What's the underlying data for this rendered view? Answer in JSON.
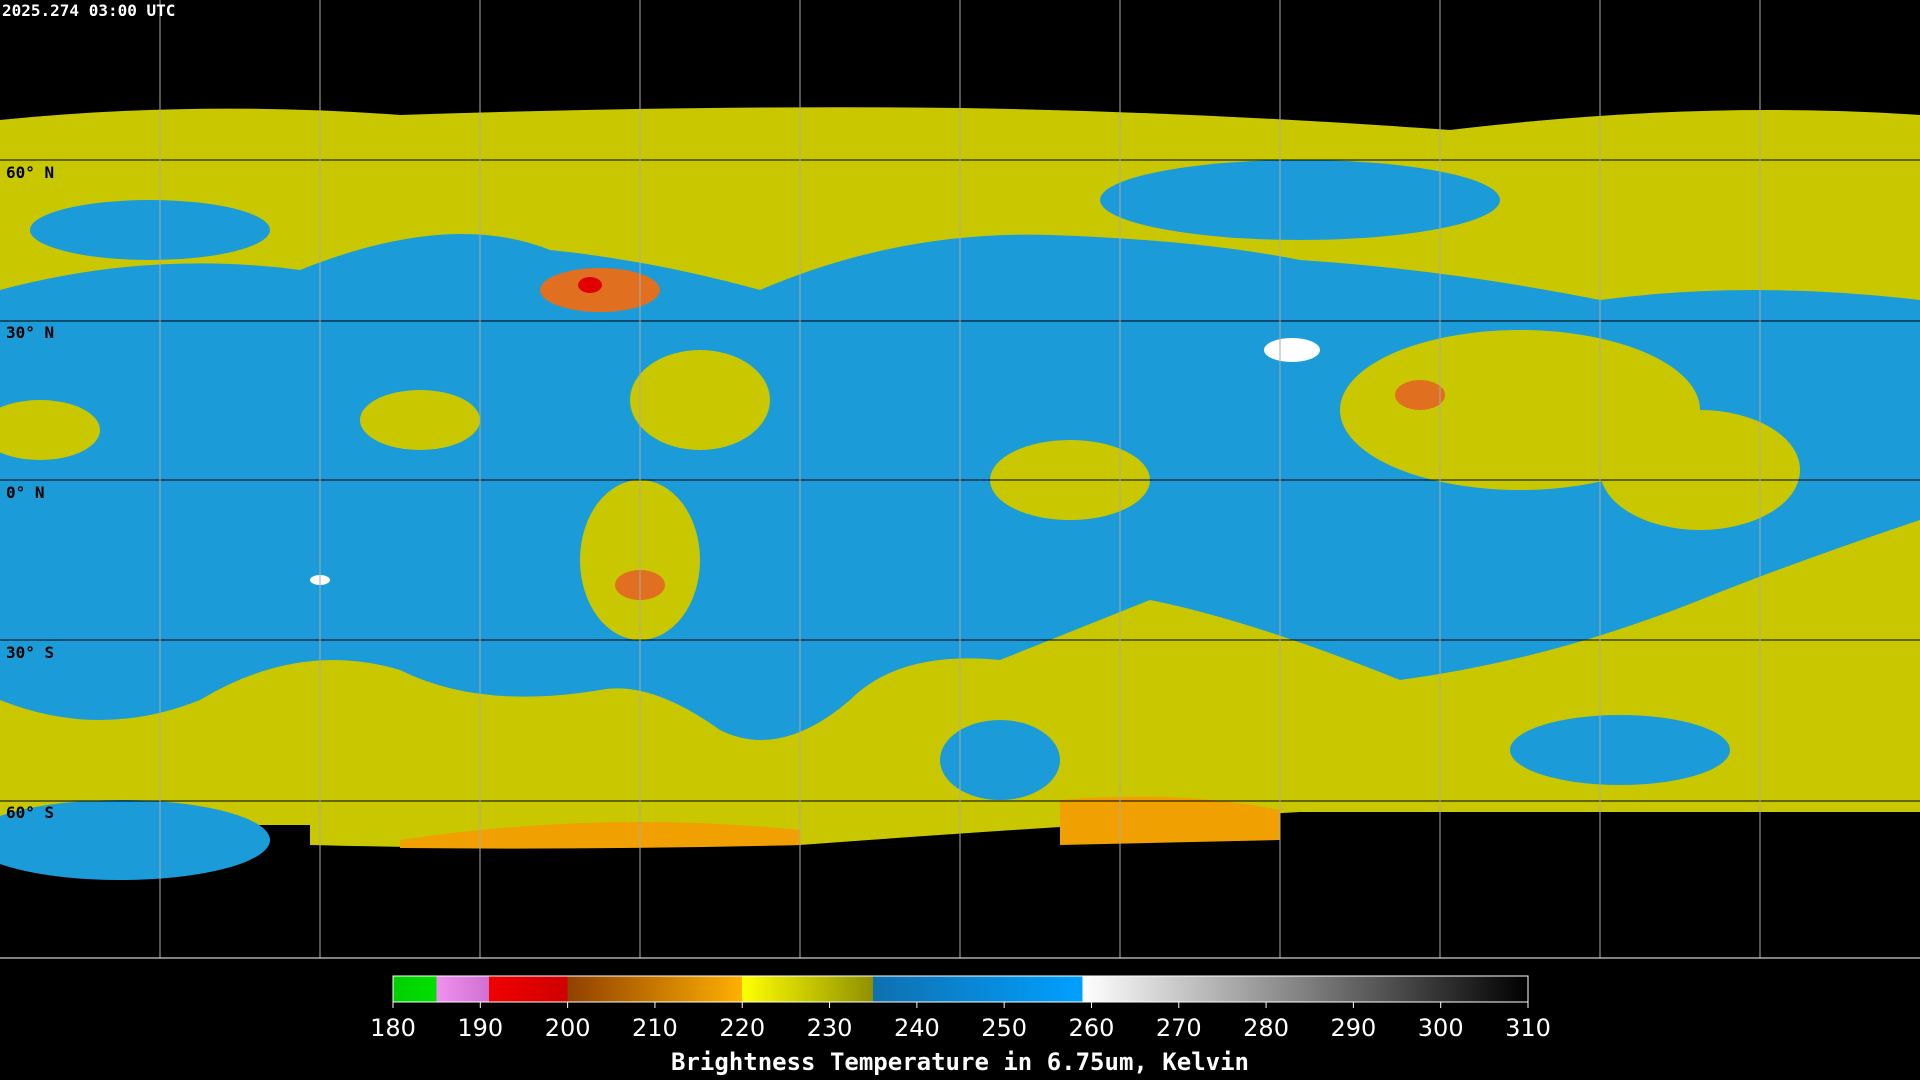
{
  "header": {
    "timestamp": "2025.274 03:00 UTC"
  },
  "map": {
    "latitude_labels": [
      "60° N",
      "30° N",
      "0° N",
      "30° S",
      "60° S"
    ]
  },
  "colorbar": {
    "ticks": [
      180,
      190,
      200,
      210,
      220,
      230,
      240,
      250,
      260,
      270,
      280,
      290,
      300,
      310
    ],
    "label": "Brightness Temperature in 6.75um, Kelvin"
  }
}
